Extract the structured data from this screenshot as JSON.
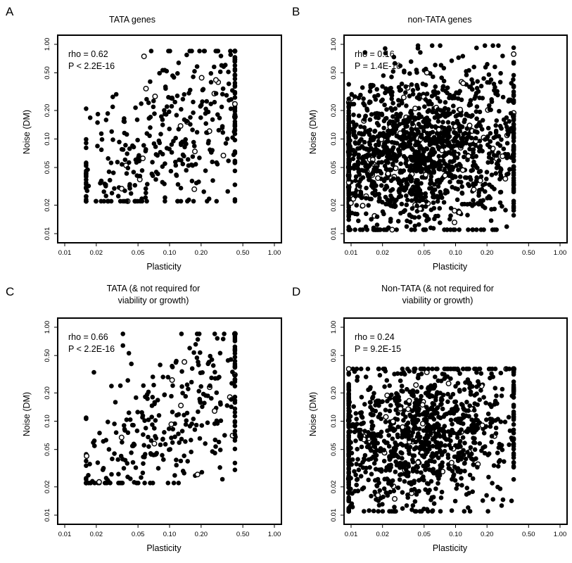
{
  "chart_data": [
    {
      "type": "scatter",
      "panel": "A",
      "title": [
        "TATA genes"
      ],
      "xlabel": "Plasticity",
      "ylabel": "Noise (DM)",
      "x_scale": "log",
      "y_scale": "log",
      "xlim": [
        0.01,
        1.0
      ],
      "ylim": [
        0.01,
        1.0
      ],
      "xticks": [
        "0.01",
        "0.02",
        "0.05",
        "0.10",
        "0.20",
        "0.50",
        "1.00"
      ],
      "yticks": [
        "0.01",
        "0.02",
        "0.05",
        "0.10",
        "0.20",
        "0.50",
        "1.00"
      ],
      "annotations": [
        "rho = 0.62",
        "P < 2.2E-16"
      ],
      "grid": false,
      "n_points": 420,
      "rho": 0.62,
      "seed": 11,
      "x_center": 0.1,
      "x_sd": 0.55,
      "x_range": [
        0.016,
        0.42
      ],
      "y_center": 0.1,
      "y_sd": 0.55,
      "y_range": [
        0.022,
        0.85
      ]
    },
    {
      "type": "scatter",
      "panel": "B",
      "title": [
        "non-TATA genes"
      ],
      "xlabel": "Plasticity",
      "ylabel": "Noise (DM)",
      "x_scale": "log",
      "y_scale": "log",
      "xlim": [
        0.01,
        1.0
      ],
      "ylim": [
        0.01,
        1.0
      ],
      "xticks": [
        "0.01",
        "0.02",
        "0.05",
        "0.10",
        "0.20",
        "0.50",
        "1.00"
      ],
      "yticks": [
        "0.01",
        "0.02",
        "0.05",
        "0.10",
        "0.20",
        "0.50",
        "1.00"
      ],
      "annotations": [
        "rho = 0.16",
        "P = 1.4E-10"
      ],
      "grid": false,
      "n_points": 1600,
      "rho": 0.16,
      "seed": 29,
      "x_center": 0.042,
      "x_sd": 0.55,
      "x_range": [
        0.0095,
        0.36
      ],
      "y_center": 0.072,
      "y_sd": 0.42,
      "y_range": [
        0.011,
        0.97
      ]
    },
    {
      "type": "scatter",
      "panel": "C",
      "title": [
        "TATA (& not required for",
        "viability or growth)"
      ],
      "xlabel": "Plasticity",
      "ylabel": "Noise (DM)",
      "x_scale": "log",
      "y_scale": "log",
      "xlim": [
        0.01,
        1.0
      ],
      "ylim": [
        0.01,
        1.0
      ],
      "xticks": [
        "0.01",
        "0.02",
        "0.05",
        "0.10",
        "0.20",
        "0.50",
        "1.00"
      ],
      "yticks": [
        "0.01",
        "0.02",
        "0.05",
        "0.10",
        "0.20",
        "0.50",
        "1.00"
      ],
      "annotations": [
        "rho = 0.66",
        "P < 2.2E-16"
      ],
      "grid": false,
      "n_points": 340,
      "rho": 0.66,
      "seed": 47,
      "x_center": 0.1,
      "x_sd": 0.55,
      "x_range": [
        0.016,
        0.42
      ],
      "y_center": 0.1,
      "y_sd": 0.55,
      "y_range": [
        0.022,
        0.85
      ]
    },
    {
      "type": "scatter",
      "panel": "D",
      "title": [
        "Non-TATA (& not required for",
        "viability or growth)"
      ],
      "xlabel": "Plasticity",
      "ylabel": "Noise (DM)",
      "x_scale": "log",
      "y_scale": "log",
      "xlim": [
        0.01,
        1.0
      ],
      "ylim": [
        0.01,
        1.0
      ],
      "xticks": [
        "0.01",
        "0.02",
        "0.05",
        "0.10",
        "0.20",
        "0.50",
        "1.00"
      ],
      "yticks": [
        "0.01",
        "0.02",
        "0.05",
        "0.10",
        "0.20",
        "0.50",
        "1.00"
      ],
      "annotations": [
        "rho = 0.24",
        "P = 9.2E-15"
      ],
      "grid": false,
      "n_points": 1200,
      "rho": 0.24,
      "seed": 83,
      "x_center": 0.042,
      "x_sd": 0.55,
      "x_range": [
        0.0095,
        0.36
      ],
      "y_center": 0.072,
      "y_sd": 0.42,
      "y_range": [
        0.011,
        0.36
      ]
    }
  ],
  "colors": {
    "points": "#000000",
    "frame": "#000000",
    "background": "#ffffff"
  }
}
